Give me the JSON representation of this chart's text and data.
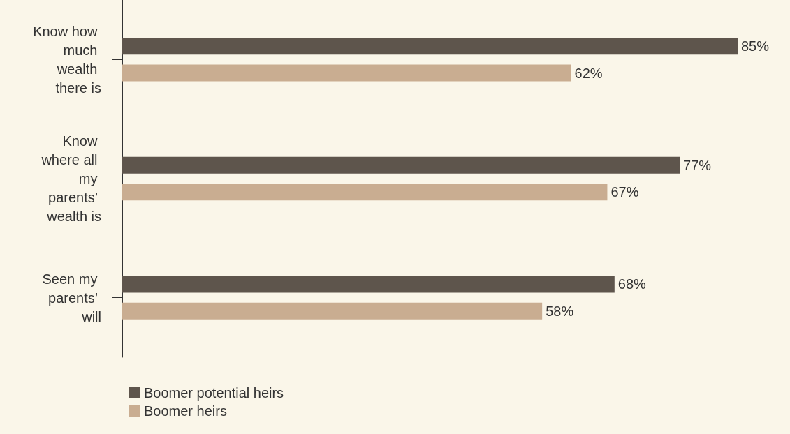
{
  "chart_data": {
    "type": "bar",
    "orientation": "horizontal",
    "categories": [
      "Know how much wealth there is",
      "Know where all my parents’ wealth is",
      "Seen my parents’ will"
    ],
    "series": [
      {
        "name": "Boomer potential heirs",
        "color": "#5e554c",
        "values": [
          85,
          77,
          68
        ],
        "value_labels": [
          "85%",
          "77%",
          "68%"
        ]
      },
      {
        "name": "Boomer heirs",
        "color": "#c9ad91",
        "values": [
          62,
          67,
          58
        ],
        "value_labels": [
          "62%",
          "67%",
          "58%"
        ]
      }
    ],
    "xlim": [
      0,
      85
    ],
    "tick_labels": "y",
    "legend": "bottom left"
  }
}
